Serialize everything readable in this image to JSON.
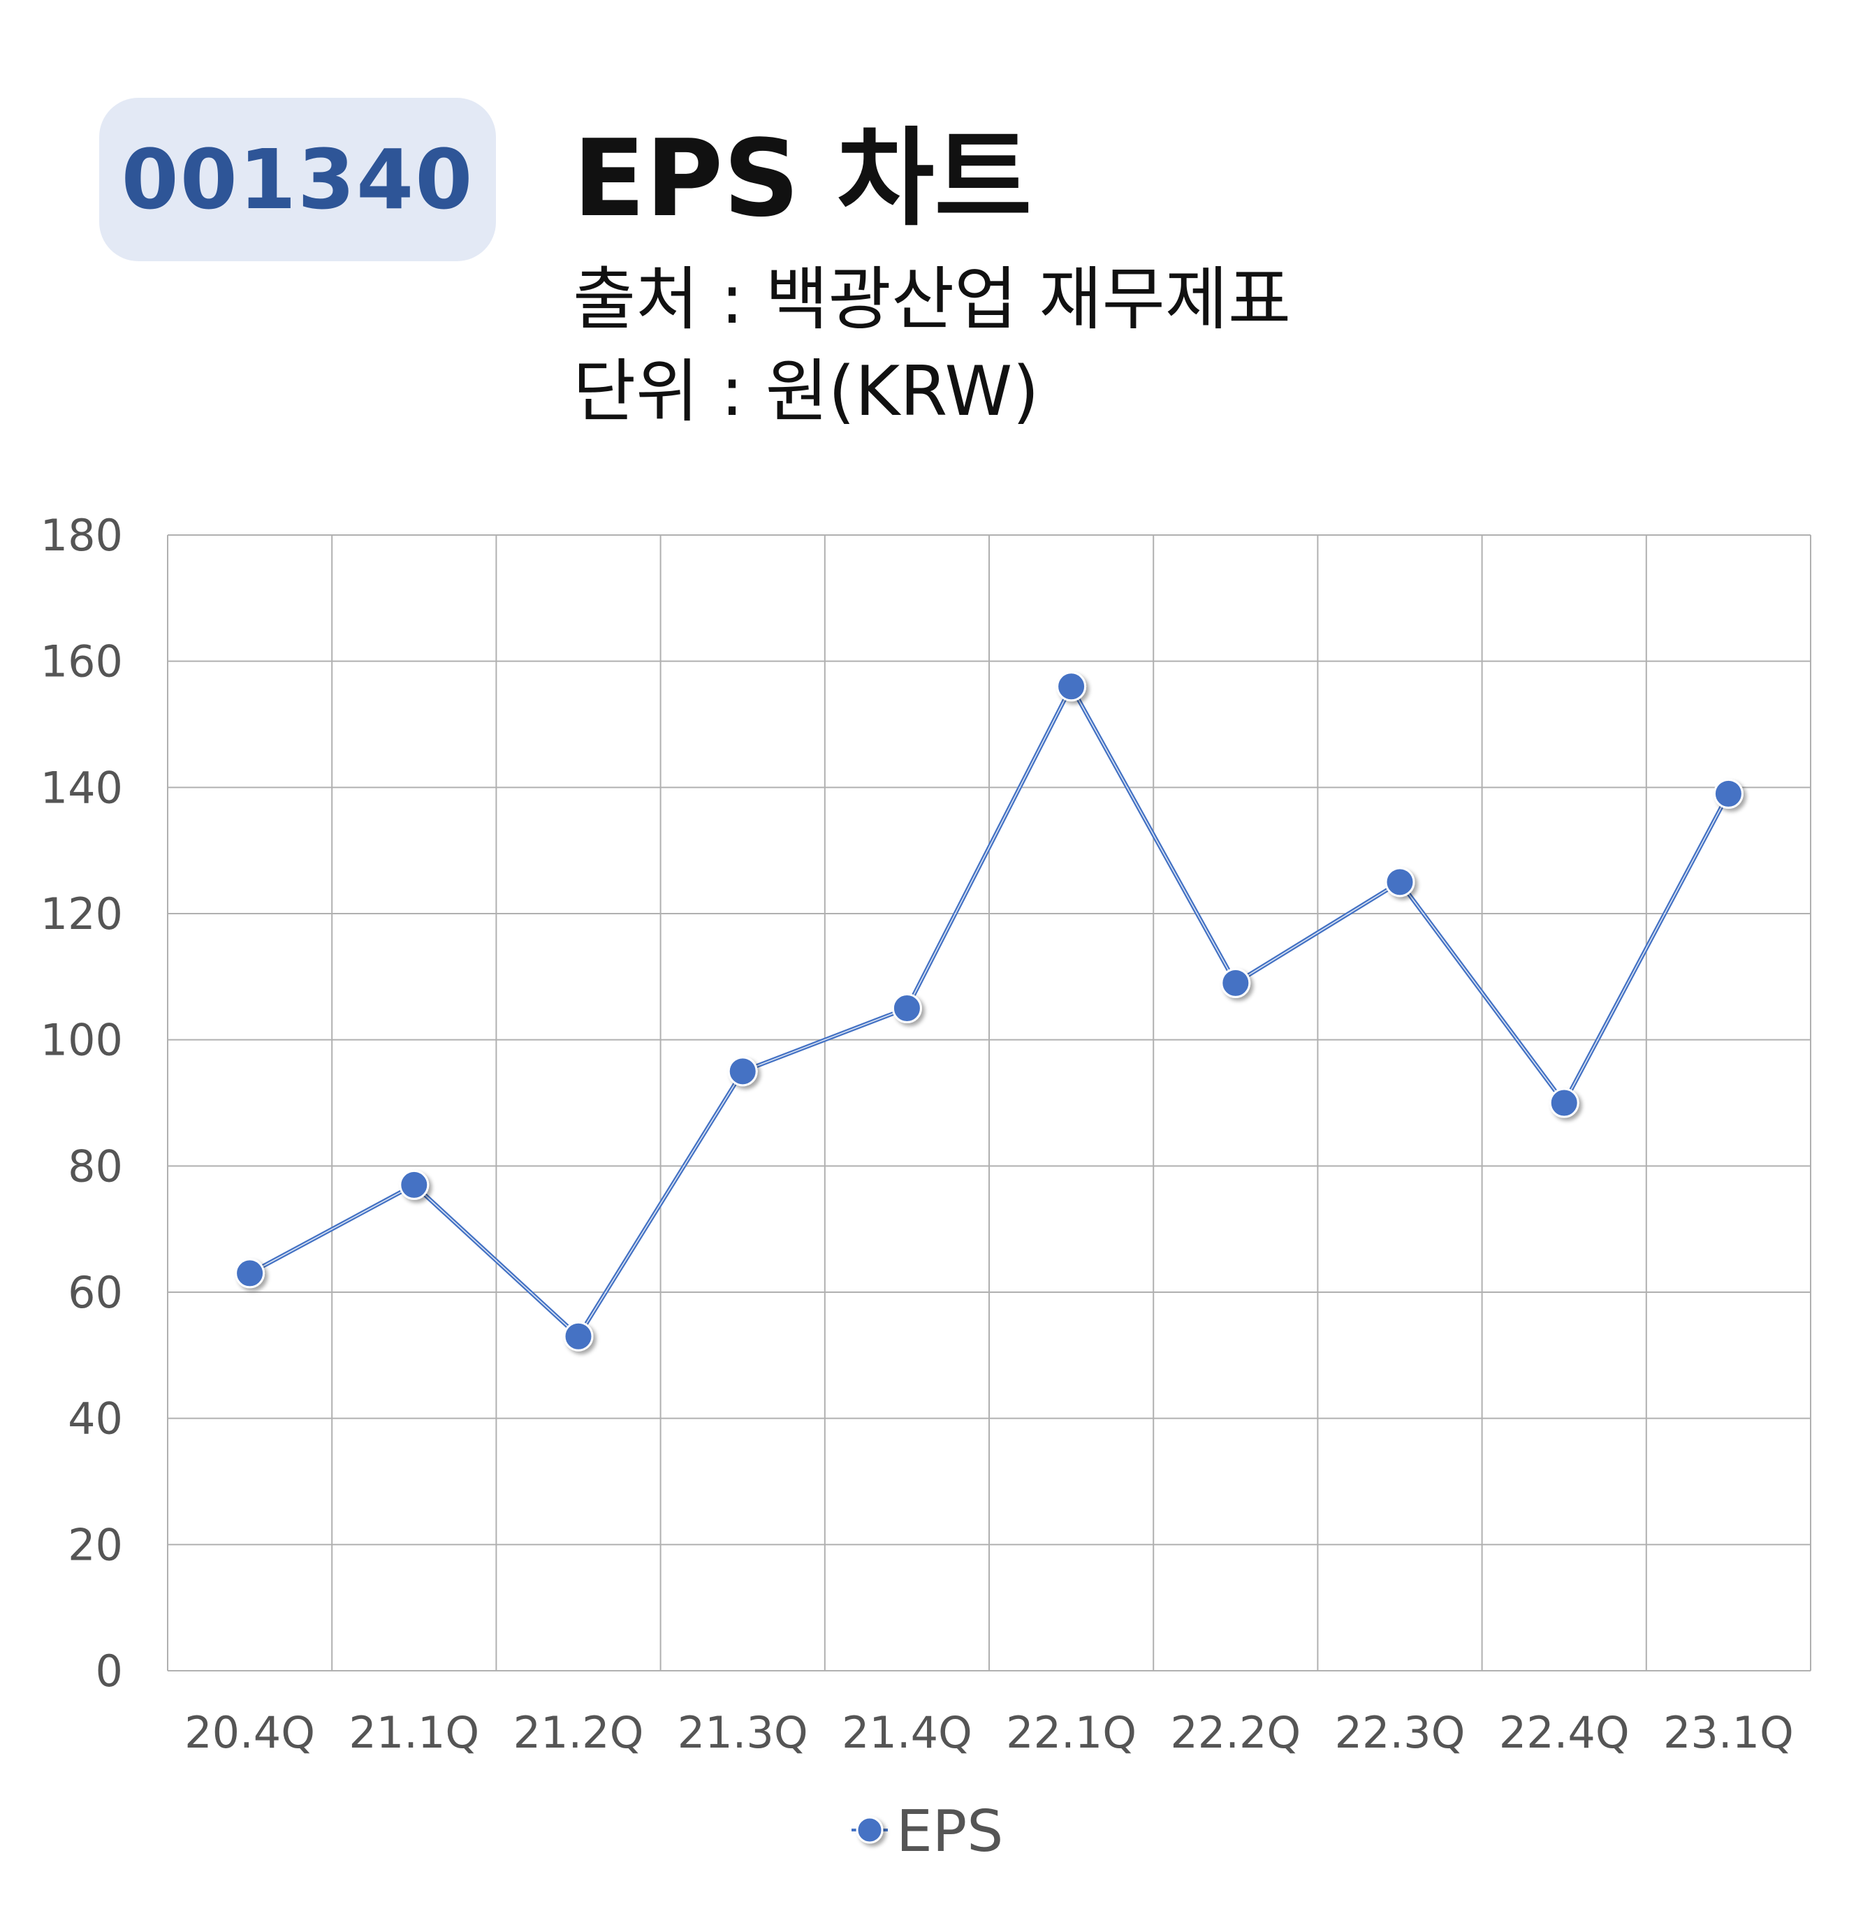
{
  "header": {
    "code": "001340",
    "title": "EPS 차트",
    "source": "출처 : 백광산업 재무제표",
    "unit": "단위 : 원(KRW)"
  },
  "colors": {
    "series": "#4472c4",
    "badge_bg": "#e3e9f5",
    "badge_text": "#2e5597",
    "grid": "#b0b0b0"
  },
  "chart_data": {
    "type": "line",
    "categories": [
      "20.4Q",
      "21.1Q",
      "21.2Q",
      "21.3Q",
      "21.4Q",
      "22.1Q",
      "22.2Q",
      "22.3Q",
      "22.4Q",
      "23.1Q"
    ],
    "series": [
      {
        "name": "EPS",
        "values": [
          63,
          77,
          53,
          95,
          105,
          156,
          109,
          125,
          90,
          139
        ]
      }
    ],
    "ylim": [
      0,
      180
    ],
    "yticks": [
      "0",
      "20",
      "40",
      "60",
      "80",
      "100",
      "120",
      "140",
      "160",
      "180"
    ],
    "grid": true,
    "legend_position": "bottom"
  }
}
